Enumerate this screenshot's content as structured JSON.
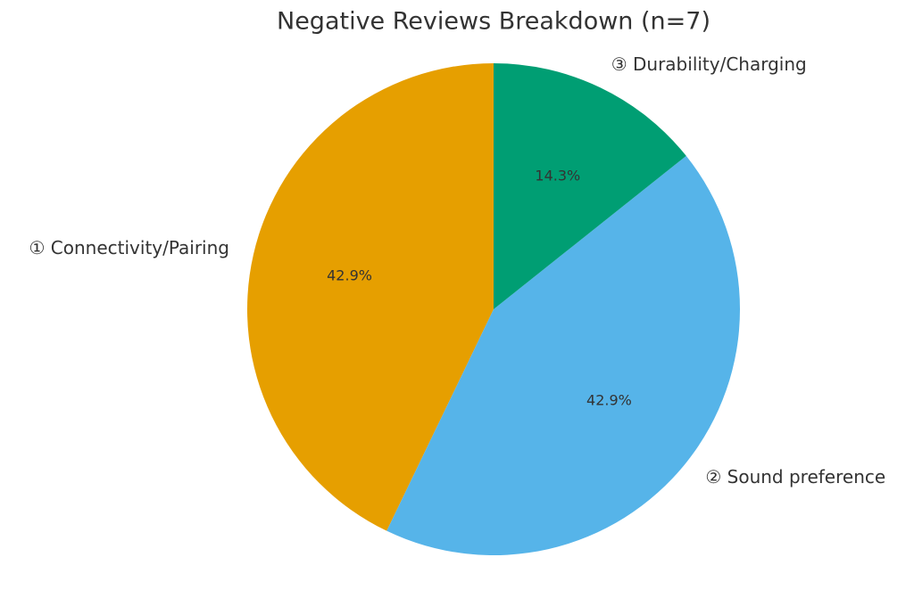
{
  "chart_data": {
    "type": "pie",
    "title": "Negative Reviews Breakdown (n=7)",
    "categories": [
      "① Connectivity/Pairing",
      "② Sound preference",
      "③ Durability/Charging"
    ],
    "values": [
      42.9,
      42.9,
      14.3
    ],
    "value_labels": [
      "42.9%",
      "42.9%",
      "14.3%"
    ],
    "colors": [
      "#E69F00",
      "#56B4E9",
      "#009E73"
    ]
  }
}
